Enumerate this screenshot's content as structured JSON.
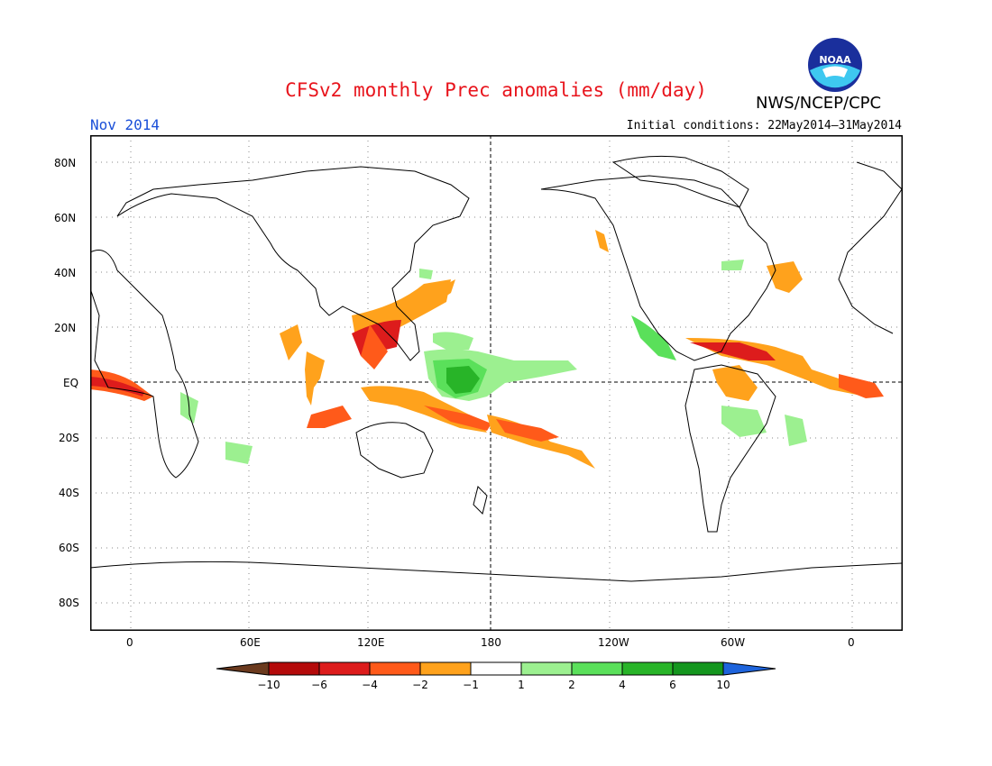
{
  "title": "CFSv2 monthly Prec anomalies (mm/day)",
  "agency": "NWS/NCEP/CPC",
  "logo_text": "NOAA",
  "month_label": "Nov 2014",
  "initial_conditions": "Initial conditions: 22May2014–31May2014",
  "lat_labels": [
    "80N",
    "60N",
    "40N",
    "20N",
    "EQ",
    "20S",
    "40S",
    "60S",
    "80S"
  ],
  "lon_labels": [
    "0",
    "60E",
    "120E",
    "180",
    "120W",
    "60W",
    "0"
  ],
  "colorbar": {
    "labels": [
      "−10",
      "−6",
      "−4",
      "−2",
      "−1",
      "1",
      "2",
      "4",
      "6",
      "10"
    ],
    "colors": [
      "#6b3a1e",
      "#b40a0a",
      "#dd1c1c",
      "#ff5a1a",
      "#ffa21c",
      "#ffffff",
      "#9cf090",
      "#5ae05a",
      "#28b428",
      "#14961e",
      "#1e64dc"
    ]
  },
  "colors": {
    "title": "#e8141c",
    "month": "#1a4fd8"
  }
}
